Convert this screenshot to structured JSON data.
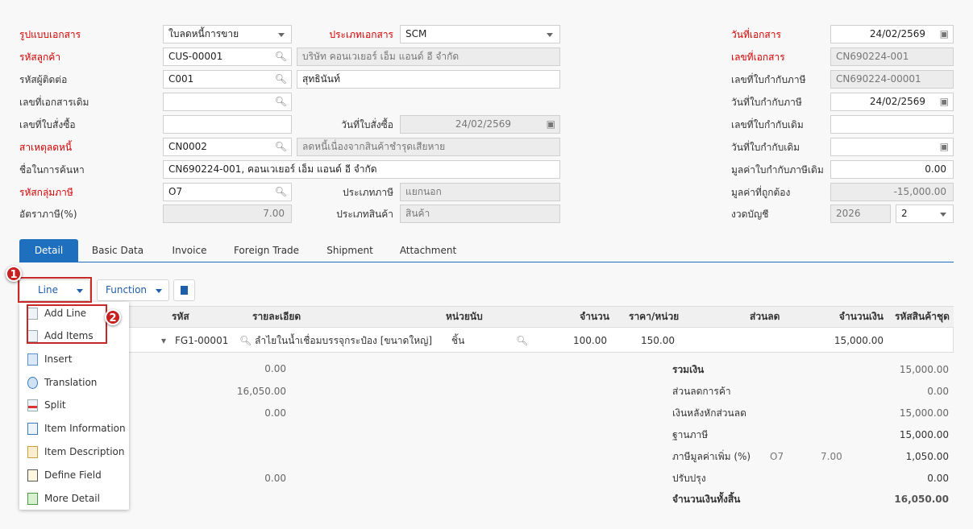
{
  "form": {
    "doc_format": {
      "label": "รูปแบบเอกสาร",
      "value": "ใบลดหนี้การขาย"
    },
    "doc_type": {
      "label": "ประเภทเอกสาร",
      "value": "SCM"
    },
    "customer_code": {
      "label": "รหัสลูกค้า",
      "value": "CUS-00001",
      "name": "บริษัท คอนเวเยอร์ เอ็ม แอนด์ อี จำกัด"
    },
    "contact_code": {
      "label": "รหัสผู้ติดต่อ",
      "value": "C001",
      "name": "สุทธินันท์"
    },
    "orig_doc_no": {
      "label": "เลขที่เอกสารเดิม",
      "value": ""
    },
    "po_no": {
      "label": "เลขที่ใบสั่งซื้อ",
      "value": ""
    },
    "po_date": {
      "label": "วันที่ใบสั่งซื้อ",
      "value": "24/02/2569"
    },
    "reason": {
      "label": "สาเหตุลดหนี้",
      "value": "CN0002",
      "name": "ลดหนี้เนื่องจากสินค้าชำรุดเสียหาย"
    },
    "search_name": {
      "label": "ชื่อในการค้นหา",
      "value": "CN690224-001, คอนเวเยอร์ เอ็ม แอนด์ อี จำกัด"
    },
    "tax_group": {
      "label": "รหัสกลุ่มภาษี",
      "value": "O7"
    },
    "tax_type": {
      "label": "ประเภทภาษี",
      "value": "แยกนอก"
    },
    "tax_rate": {
      "label": "อัตราภาษี(%)",
      "value": "7.00"
    },
    "product_type": {
      "label": "ประเภทสินค้า",
      "value": "สินค้า"
    },
    "doc_date": {
      "label": "วันที่เอกสาร",
      "value": "24/02/2569"
    },
    "doc_no": {
      "label": "เลขที่เอกสาร",
      "value": "CN690224-001"
    },
    "tax_inv_no": {
      "label": "เลขที่ใบกำกับภาษี",
      "value": "CN690224-00001"
    },
    "tax_inv_date": {
      "label": "วันที่ใบกำกับภาษี",
      "value": "24/02/2569"
    },
    "orig_inv_no": {
      "label": "เลขที่ใบกำกับเดิม",
      "value": ""
    },
    "orig_inv_date": {
      "label": "วันที่ใบกำกับเดิม",
      "value": ""
    },
    "orig_inv_value": {
      "label": "มูลค่าใบกำกับภาษีเดิม",
      "value": "0.00"
    },
    "correct_value": {
      "label": "มูลค่าที่ถูกต้อง",
      "value": "-15,000.00"
    },
    "period": {
      "label": "งวดบัญชี",
      "year": "2026",
      "month": "2"
    }
  },
  "tabs": [
    "Detail",
    "Basic Data",
    "Invoice",
    "Foreign Trade",
    "Shipment",
    "Attachment"
  ],
  "toolbar": {
    "line": "Line",
    "function": "Function"
  },
  "menu": [
    "Add Line",
    "Add Items",
    "Insert",
    "Translation",
    "Split",
    "Item Information",
    "Item Description",
    "Define Field",
    "More Detail"
  ],
  "badges": [
    "1",
    "2"
  ],
  "table": {
    "headers": [
      "รหัส",
      "รายละเอียด",
      "หน่วยนับ",
      "จำนวน",
      "ราคา/หน่วย",
      "ส่วนลด",
      "จำนวนเงิน",
      "รหัสสินค้าชุด"
    ],
    "row": {
      "code": "FG1-00001",
      "desc": "ลำไยในน้ำเชื่อมบรรจุกระป๋อง [ขนาดใหญ่]",
      "unit": "ชิ้น",
      "qty": "100.00",
      "price": "150.00",
      "discount": "",
      "amount": "15,000.00",
      "set_code": ""
    }
  },
  "left_summary": [
    "0.00",
    "16,050.00",
    "0.00",
    "0.00"
  ],
  "summary": {
    "subtotal": {
      "label": "รวมเงิน",
      "value": "15,000.00"
    },
    "trade_discount": {
      "label": "ส่วนลดการค้า",
      "value": "0.00"
    },
    "after_discount": {
      "label": "เงินหลังหักส่วนลด",
      "value": "15,000.00"
    },
    "tax_base": {
      "label": "ฐานภาษี",
      "value": "15,000.00"
    },
    "vat": {
      "label": "ภาษีมูลค่าเพิ่ม (%)",
      "code": "O7",
      "rate": "7.00",
      "value": "1,050.00"
    },
    "adjust": {
      "label": "ปรับปรุง",
      "value": "0.00"
    },
    "total": {
      "label": "จำนวนเงินทั้งสิ้น",
      "value": "16,050.00"
    }
  },
  "colors": {
    "accent": "#1f6fbf",
    "required": "#d40000",
    "highlight": "#c62828"
  }
}
